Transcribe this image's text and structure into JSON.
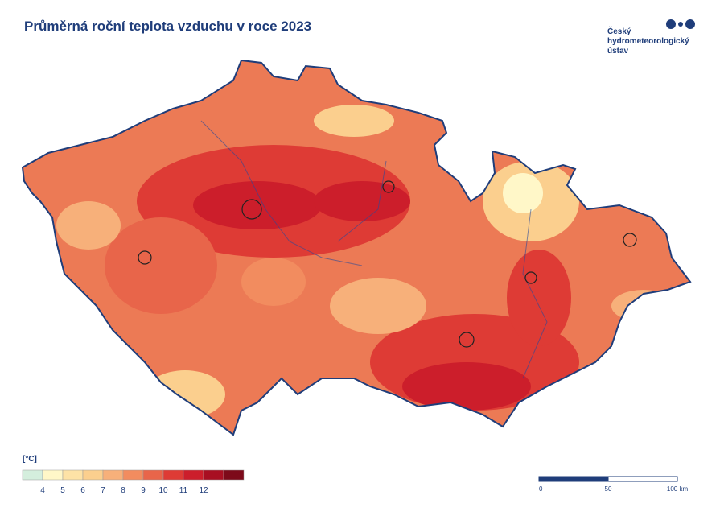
{
  "header": {
    "title": "Průměrná roční teplota vzduchu v roce 2023"
  },
  "logo": {
    "lines": [
      "Český",
      "hydrometeorologický",
      "ústav"
    ]
  },
  "legend": {
    "unit": "[°C]",
    "colors": [
      "#d4eedd",
      "#fff7c8",
      "#fde2a6",
      "#fbcf8e",
      "#f7b07a",
      "#f28c5f",
      "#e8654a",
      "#de3b35",
      "#cc1e2b",
      "#a80f22",
      "#7d0a1a"
    ],
    "ticks": [
      "4",
      "5",
      "6",
      "7",
      "8",
      "9",
      "10",
      "11",
      "12"
    ]
  },
  "scale_bar": {
    "labels": [
      "0",
      "50",
      "100 km"
    ]
  }
}
